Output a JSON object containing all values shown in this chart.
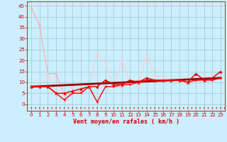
{
  "xlabel": "Vent moyen/en rafales ( km/h )",
  "bg_color": "#cceeff",
  "grid_color": "#99cccc",
  "x_ticks": [
    0,
    1,
    2,
    3,
    4,
    5,
    6,
    7,
    8,
    9,
    10,
    11,
    12,
    13,
    14,
    15,
    16,
    17,
    18,
    19,
    20,
    21,
    22,
    23
  ],
  "y_ticks": [
    0,
    5,
    10,
    15,
    20,
    25,
    30,
    35,
    40,
    45
  ],
  "ylim": [
    -3,
    47
  ],
  "xlim": [
    -0.5,
    23.5
  ],
  "series": [
    {
      "x": [
        0,
        1,
        2,
        3,
        4,
        5,
        6,
        7,
        8,
        9,
        10,
        11,
        12,
        13,
        14,
        15,
        16,
        17,
        18,
        19,
        20,
        21,
        22,
        23
      ],
      "y": [
        44,
        36,
        14,
        14,
        4,
        5,
        6,
        8,
        8,
        11,
        8,
        8,
        10,
        11,
        11,
        11,
        11,
        11,
        11,
        11,
        11,
        11,
        11,
        12
      ],
      "color": "#ffaaaa",
      "lw": 0.8,
      "marker": "D",
      "ms": 1.5,
      "zorder": 2
    },
    {
      "x": [
        0,
        1,
        2,
        3,
        4,
        5,
        6,
        7,
        8,
        9,
        10,
        11,
        12,
        13,
        14,
        15,
        16,
        17,
        18,
        19,
        20,
        21,
        22,
        23
      ],
      "y": [
        8,
        8,
        14,
        5,
        5,
        8,
        7,
        8,
        23,
        19,
        8,
        20,
        10,
        8,
        23,
        13,
        13,
        11,
        11,
        9,
        13,
        11,
        14,
        12
      ],
      "color": "#ffcccc",
      "lw": 0.8,
      "marker": "D",
      "ms": 1.5,
      "zorder": 2
    },
    {
      "x": [
        0,
        1,
        2,
        3,
        4,
        5,
        6,
        7,
        8,
        9,
        10,
        11,
        12,
        13,
        14,
        15,
        16,
        17,
        18,
        19,
        20,
        21,
        22,
        23
      ],
      "y": [
        8,
        8,
        8,
        5,
        5,
        6,
        7,
        8,
        8,
        11,
        9,
        9,
        11,
        10,
        12,
        11,
        11,
        11,
        11,
        10,
        14,
        11,
        12,
        15
      ],
      "color": "#cc0000",
      "lw": 1.0,
      "marker": "^",
      "ms": 2.5,
      "zorder": 4
    },
    {
      "x": [
        0,
        1,
        2,
        3,
        4,
        5,
        6,
        7,
        8,
        9,
        10,
        11,
        12,
        13,
        14,
        15,
        16,
        17,
        18,
        19,
        20,
        21,
        22,
        23
      ],
      "y": [
        8,
        8,
        8,
        5,
        2,
        5,
        5,
        8,
        1,
        8,
        8,
        9,
        9,
        10,
        11,
        11,
        11,
        11,
        11,
        10,
        11,
        11,
        11,
        12
      ],
      "color": "#ff0000",
      "lw": 1.0,
      "marker": "v",
      "ms": 2.0,
      "zorder": 4
    },
    {
      "x": [
        0,
        23
      ],
      "y": [
        8,
        12
      ],
      "color": "#990000",
      "lw": 2.0,
      "marker": null,
      "ms": 0,
      "zorder": 3
    }
  ],
  "axis_label_color": "#cc0000",
  "tick_color": "#cc0000",
  "xlabel_fontsize": 6,
  "tick_fontsize": 5
}
